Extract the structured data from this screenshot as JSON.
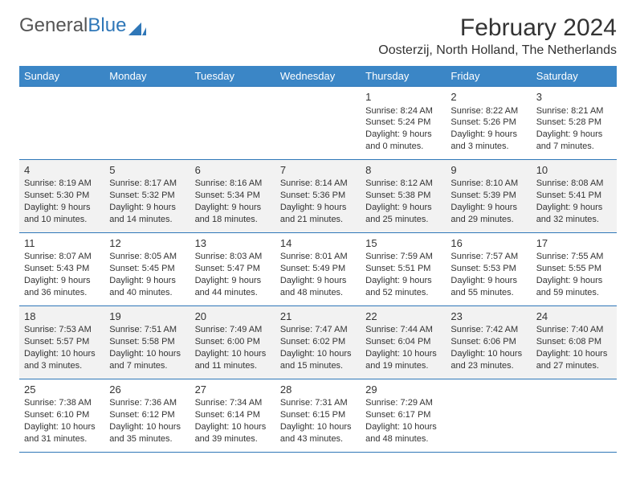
{
  "brand": {
    "part1": "General",
    "part2": "Blue"
  },
  "title": "February 2024",
  "location": "Oosterzij, North Holland, The Netherlands",
  "colors": {
    "header_bg": "#3b86c6",
    "header_text": "#ffffff",
    "rule": "#2f77b8",
    "alt_row": "#f2f2f2",
    "text": "#333333",
    "logo_accent": "#2f77b8"
  },
  "weekdays": [
    "Sunday",
    "Monday",
    "Tuesday",
    "Wednesday",
    "Thursday",
    "Friday",
    "Saturday"
  ],
  "weeks": [
    [
      null,
      null,
      null,
      null,
      {
        "d": "1",
        "sr": "Sunrise: 8:24 AM",
        "ss": "Sunset: 5:24 PM",
        "dl1": "Daylight: 9 hours",
        "dl2": "and 0 minutes."
      },
      {
        "d": "2",
        "sr": "Sunrise: 8:22 AM",
        "ss": "Sunset: 5:26 PM",
        "dl1": "Daylight: 9 hours",
        "dl2": "and 3 minutes."
      },
      {
        "d": "3",
        "sr": "Sunrise: 8:21 AM",
        "ss": "Sunset: 5:28 PM",
        "dl1": "Daylight: 9 hours",
        "dl2": "and 7 minutes."
      }
    ],
    [
      {
        "d": "4",
        "sr": "Sunrise: 8:19 AM",
        "ss": "Sunset: 5:30 PM",
        "dl1": "Daylight: 9 hours",
        "dl2": "and 10 minutes."
      },
      {
        "d": "5",
        "sr": "Sunrise: 8:17 AM",
        "ss": "Sunset: 5:32 PM",
        "dl1": "Daylight: 9 hours",
        "dl2": "and 14 minutes."
      },
      {
        "d": "6",
        "sr": "Sunrise: 8:16 AM",
        "ss": "Sunset: 5:34 PM",
        "dl1": "Daylight: 9 hours",
        "dl2": "and 18 minutes."
      },
      {
        "d": "7",
        "sr": "Sunrise: 8:14 AM",
        "ss": "Sunset: 5:36 PM",
        "dl1": "Daylight: 9 hours",
        "dl2": "and 21 minutes."
      },
      {
        "d": "8",
        "sr": "Sunrise: 8:12 AM",
        "ss": "Sunset: 5:38 PM",
        "dl1": "Daylight: 9 hours",
        "dl2": "and 25 minutes."
      },
      {
        "d": "9",
        "sr": "Sunrise: 8:10 AM",
        "ss": "Sunset: 5:39 PM",
        "dl1": "Daylight: 9 hours",
        "dl2": "and 29 minutes."
      },
      {
        "d": "10",
        "sr": "Sunrise: 8:08 AM",
        "ss": "Sunset: 5:41 PM",
        "dl1": "Daylight: 9 hours",
        "dl2": "and 32 minutes."
      }
    ],
    [
      {
        "d": "11",
        "sr": "Sunrise: 8:07 AM",
        "ss": "Sunset: 5:43 PM",
        "dl1": "Daylight: 9 hours",
        "dl2": "and 36 minutes."
      },
      {
        "d": "12",
        "sr": "Sunrise: 8:05 AM",
        "ss": "Sunset: 5:45 PM",
        "dl1": "Daylight: 9 hours",
        "dl2": "and 40 minutes."
      },
      {
        "d": "13",
        "sr": "Sunrise: 8:03 AM",
        "ss": "Sunset: 5:47 PM",
        "dl1": "Daylight: 9 hours",
        "dl2": "and 44 minutes."
      },
      {
        "d": "14",
        "sr": "Sunrise: 8:01 AM",
        "ss": "Sunset: 5:49 PM",
        "dl1": "Daylight: 9 hours",
        "dl2": "and 48 minutes."
      },
      {
        "d": "15",
        "sr": "Sunrise: 7:59 AM",
        "ss": "Sunset: 5:51 PM",
        "dl1": "Daylight: 9 hours",
        "dl2": "and 52 minutes."
      },
      {
        "d": "16",
        "sr": "Sunrise: 7:57 AM",
        "ss": "Sunset: 5:53 PM",
        "dl1": "Daylight: 9 hours",
        "dl2": "and 55 minutes."
      },
      {
        "d": "17",
        "sr": "Sunrise: 7:55 AM",
        "ss": "Sunset: 5:55 PM",
        "dl1": "Daylight: 9 hours",
        "dl2": "and 59 minutes."
      }
    ],
    [
      {
        "d": "18",
        "sr": "Sunrise: 7:53 AM",
        "ss": "Sunset: 5:57 PM",
        "dl1": "Daylight: 10 hours",
        "dl2": "and 3 minutes."
      },
      {
        "d": "19",
        "sr": "Sunrise: 7:51 AM",
        "ss": "Sunset: 5:58 PM",
        "dl1": "Daylight: 10 hours",
        "dl2": "and 7 minutes."
      },
      {
        "d": "20",
        "sr": "Sunrise: 7:49 AM",
        "ss": "Sunset: 6:00 PM",
        "dl1": "Daylight: 10 hours",
        "dl2": "and 11 minutes."
      },
      {
        "d": "21",
        "sr": "Sunrise: 7:47 AM",
        "ss": "Sunset: 6:02 PM",
        "dl1": "Daylight: 10 hours",
        "dl2": "and 15 minutes."
      },
      {
        "d": "22",
        "sr": "Sunrise: 7:44 AM",
        "ss": "Sunset: 6:04 PM",
        "dl1": "Daylight: 10 hours",
        "dl2": "and 19 minutes."
      },
      {
        "d": "23",
        "sr": "Sunrise: 7:42 AM",
        "ss": "Sunset: 6:06 PM",
        "dl1": "Daylight: 10 hours",
        "dl2": "and 23 minutes."
      },
      {
        "d": "24",
        "sr": "Sunrise: 7:40 AM",
        "ss": "Sunset: 6:08 PM",
        "dl1": "Daylight: 10 hours",
        "dl2": "and 27 minutes."
      }
    ],
    [
      {
        "d": "25",
        "sr": "Sunrise: 7:38 AM",
        "ss": "Sunset: 6:10 PM",
        "dl1": "Daylight: 10 hours",
        "dl2": "and 31 minutes."
      },
      {
        "d": "26",
        "sr": "Sunrise: 7:36 AM",
        "ss": "Sunset: 6:12 PM",
        "dl1": "Daylight: 10 hours",
        "dl2": "and 35 minutes."
      },
      {
        "d": "27",
        "sr": "Sunrise: 7:34 AM",
        "ss": "Sunset: 6:14 PM",
        "dl1": "Daylight: 10 hours",
        "dl2": "and 39 minutes."
      },
      {
        "d": "28",
        "sr": "Sunrise: 7:31 AM",
        "ss": "Sunset: 6:15 PM",
        "dl1": "Daylight: 10 hours",
        "dl2": "and 43 minutes."
      },
      {
        "d": "29",
        "sr": "Sunrise: 7:29 AM",
        "ss": "Sunset: 6:17 PM",
        "dl1": "Daylight: 10 hours",
        "dl2": "and 48 minutes."
      },
      null,
      null
    ]
  ]
}
